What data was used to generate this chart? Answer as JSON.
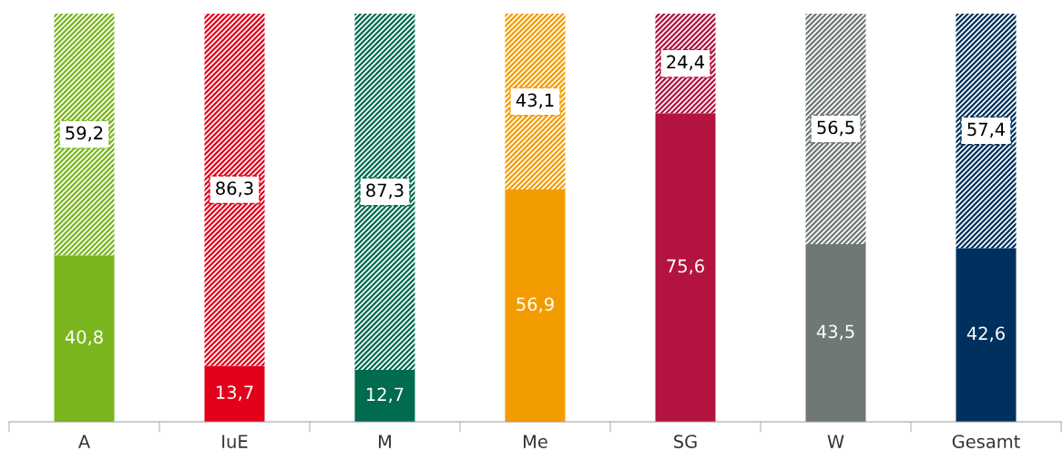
{
  "chart_data": {
    "type": "bar",
    "stacked": true,
    "categories": [
      "A",
      "IuE",
      "M",
      "Me",
      "SG",
      "W",
      "Gesamt"
    ],
    "series": [
      {
        "colors": [
          "#7ab51d",
          "#e3001b",
          "#006b4f",
          "#f39c00",
          "#b2133f",
          "#6f7777",
          "#00305e"
        ],
        "values": [
          40.8,
          13.7,
          12.7,
          56.9,
          75.6,
          43.5,
          42.6
        ],
        "value_labels": [
          "40,8",
          "13,7",
          "12,7",
          "56,9",
          "75,6",
          "43,5",
          "42,6"
        ]
      },
      {
        "colors": [
          "#7ab51d",
          "#e3001b",
          "#006b4f",
          "#f39c00",
          "#b2133f",
          "#6f7777",
          "#00305e"
        ],
        "values": [
          59.2,
          86.3,
          87.3,
          43.1,
          24.4,
          56.5,
          57.4
        ],
        "value_labels": [
          "59,2",
          "86,3",
          "87,3",
          "43,1",
          "24,4",
          "56,5",
          "57,4"
        ]
      }
    ]
  }
}
